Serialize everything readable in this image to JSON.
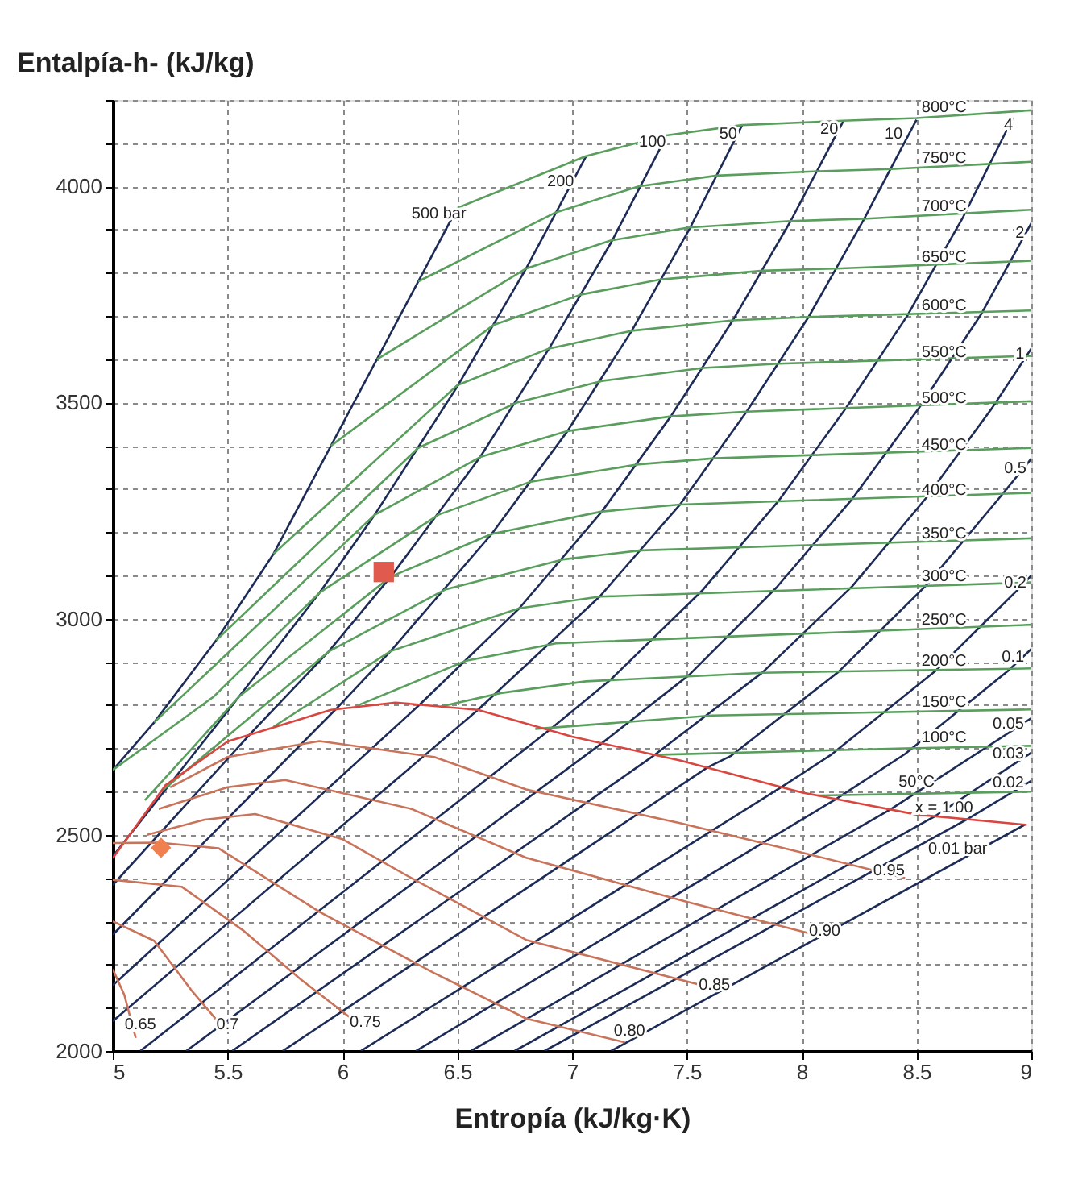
{
  "chart_data": {
    "type": "line",
    "xlabel": "Entropía (kJ/kg·K)",
    "ylabel": "Entalpía-h- (kJ/kg)",
    "xlim": [
      5,
      9
    ],
    "ylim": [
      2000,
      4200
    ],
    "xticks": [
      5,
      5.5,
      6,
      6.5,
      7,
      7.5,
      8,
      8.5,
      9
    ],
    "yticks": [
      2000,
      {
        "value": 2100,
        "label": null
      },
      {
        "value": 2200,
        "label": null
      },
      {
        "value": 2300,
        "label": null
      },
      {
        "value": 2400,
        "label": null
      },
      2500,
      {
        "value": 2600,
        "label": null
      },
      {
        "value": 2700,
        "label": null
      },
      {
        "value": 2800,
        "label": null
      },
      {
        "value": 2900,
        "label": null
      },
      3000,
      {
        "value": 3100,
        "label": null
      },
      {
        "value": 3200,
        "label": null
      },
      {
        "value": 3300,
        "label": null
      },
      {
        "value": 3400,
        "label": null
      },
      3500,
      {
        "value": 3600,
        "label": null
      },
      {
        "value": 3700,
        "label": null
      },
      {
        "value": 3800,
        "label": null
      },
      {
        "value": 3900,
        "label": null
      },
      4000,
      {
        "value": 4100,
        "label": null
      },
      {
        "value": 4200,
        "label": null
      }
    ],
    "grid": true,
    "legend": false,
    "line_style": "solid",
    "series": [
      {
        "color": "#1d2b57",
        "x": [
          5.0,
          5.18,
          5.45,
          5.7,
          5.95,
          6.15,
          6.33,
          6.5
        ],
        "values": [
          2650,
          2760,
          2950,
          3150,
          3400,
          3600,
          3780,
          3950
        ]
      },
      {
        "color": "#1d2b57",
        "x": [
          5.0,
          5.55,
          5.9,
          6.14,
          6.5,
          6.8,
          7.06
        ],
        "values": [
          2450,
          2820,
          3060,
          3240,
          3537,
          3810,
          4069
        ]
      },
      {
        "color": "#1d2b57",
        "x": [
          5.0,
          5.61,
          5.94,
          6.21,
          6.6,
          6.9,
          7.17,
          7.41
        ],
        "values": [
          2384,
          2740,
          2924,
          3097,
          3374,
          3625,
          3870,
          4115
        ]
      },
      {
        "color": "#1d2b57",
        "x": [
          5.0,
          5.97,
          6.21,
          6.65,
          6.98,
          7.26,
          7.51,
          7.74
        ],
        "values": [
          2269,
          2790,
          2925,
          3196,
          3434,
          3666,
          3900,
          4141
        ]
      },
      {
        "color": "#1d2b57",
        "x": [
          5.0,
          6.34,
          6.77,
          7.13,
          7.43,
          7.7,
          7.95,
          8.18
        ],
        "values": [
          2152,
          2803,
          3024,
          3248,
          3468,
          3690,
          3918,
          4150
        ]
      },
      {
        "color": "#1d2b57",
        "x": [
          5.0,
          6.59,
          7.12,
          7.47,
          7.76,
          8.03,
          8.27,
          8.5
        ],
        "values": [
          2069,
          2789,
          3051,
          3264,
          3479,
          3698,
          3923,
          4154
        ]
      },
      {
        "color": "#1d2b57",
        "x": [
          5.12,
          6.9,
          7.17,
          7.57,
          7.9,
          8.19,
          8.46,
          8.7,
          8.92
        ],
        "values": [
          2000,
          2742,
          2860,
          3067,
          3273,
          3485,
          3701,
          3926,
          4159
        ]
      },
      {
        "color": "#1d2b57",
        "x": [
          5.32,
          7.13,
          7.51,
          7.89,
          8.22,
          8.51,
          8.78,
          9.0
        ],
        "values": [
          2000,
          2712,
          2870,
          3072,
          3277,
          3487,
          3703,
          3915
        ]
      },
      {
        "color": "#1d2b57",
        "x": [
          5.52,
          7.36,
          7.83,
          8.22,
          8.54,
          8.83,
          9.0
        ],
        "values": [
          2000,
          2685,
          2876,
          3075,
          3278,
          3488,
          3625
        ]
      },
      {
        "color": "#1d2b57",
        "x": [
          5.74,
          7.59,
          7.69,
          8.16,
          8.54,
          8.86,
          9.0
        ],
        "values": [
          2000,
          2656,
          2682,
          2877,
          3076,
          3279,
          3370
        ]
      },
      {
        "color": "#1d2b57",
        "x": [
          6.08,
          7.91,
          8.13,
          8.58,
          8.96,
          9.0
        ],
        "values": [
          2000,
          2610,
          2686,
          2878,
          3077,
          3100
        ]
      },
      {
        "color": "#1d2b57",
        "x": [
          6.32,
          8.15,
          8.45,
          8.9,
          9.0
        ],
        "values": [
          2000,
          2583,
          2687,
          2880,
          2930
        ]
      },
      {
        "color": "#1d2b57",
        "x": [
          6.56,
          8.39,
          9.0
        ],
        "values": [
          2000,
          2560,
          2770
        ]
      },
      {
        "color": "#1d2b57",
        "x": [
          6.75,
          8.58,
          9.0
        ],
        "values": [
          2000,
          2543,
          2690
        ]
      },
      {
        "color": "#1d2b57",
        "x": [
          6.88,
          8.72,
          9.0
        ],
        "values": [
          2000,
          2536,
          2625
        ]
      },
      {
        "color": "#1d2b57",
        "x": [
          7.17,
          8.97
        ],
        "values": [
          2000,
          2523
        ]
      },
      {
        "color": "#5a9e5e",
        "x": [
          6.5,
          7.06,
          7.41,
          7.74,
          8.18,
          8.5,
          9.0
        ],
        "values": [
          3950,
          4070,
          4118,
          4142,
          4152,
          4158,
          4176
        ]
      },
      {
        "color": "#5a9e5e",
        "x": [
          6.33,
          6.93,
          7.29,
          7.63,
          8.07,
          8.39,
          9.0
        ],
        "values": [
          3780,
          3940,
          4000,
          4025,
          4035,
          4040,
          4057
        ]
      },
      {
        "color": "#5a9e5e",
        "x": [
          6.15,
          6.8,
          7.17,
          7.51,
          7.95,
          8.27,
          9.0
        ],
        "values": [
          3600,
          3810,
          3875,
          3905,
          3920,
          3925,
          3946
        ]
      },
      {
        "color": "#5a9e5e",
        "x": [
          5.95,
          6.66,
          7.04,
          7.39,
          7.83,
          8.15,
          9.0
        ],
        "values": [
          3400,
          3680,
          3750,
          3785,
          3805,
          3810,
          3828
        ]
      },
      {
        "color": "#5a9e5e",
        "x": [
          5.7,
          6.5,
          6.9,
          7.26,
          7.7,
          8.03,
          9.0
        ],
        "values": [
          3150,
          3540,
          3625,
          3666,
          3690,
          3698,
          3713
        ]
      },
      {
        "color": "#5a9e5e",
        "x": [
          5.45,
          6.33,
          6.76,
          7.13,
          7.57,
          7.9,
          9.0
        ],
        "values": [
          2950,
          3395,
          3500,
          3550,
          3580,
          3590,
          3608
        ]
      },
      {
        "color": "#5a9e5e",
        "x": [
          5.18,
          6.14,
          6.6,
          6.98,
          7.43,
          7.76,
          9.0
        ],
        "values": [
          2760,
          3240,
          3374,
          3434,
          3468,
          3479,
          3503
        ]
      },
      {
        "color": "#5a9e5e",
        "x": [
          5.0,
          5.44,
          5.9,
          6.42,
          6.82,
          7.29,
          7.62,
          9.0
        ],
        "values": [
          2650,
          2820,
          3060,
          3241,
          3317,
          3357,
          3371,
          3395
        ]
      },
      {
        "color": "#5a9e5e",
        "x": [
          5.14,
          5.55,
          6.21,
          6.65,
          7.13,
          7.47,
          9.0
        ],
        "values": [
          2580,
          2820,
          3097,
          3196,
          3248,
          3264,
          3291
        ]
      },
      {
        "color": "#5a9e5e",
        "x": [
          5.21,
          5.94,
          6.45,
          6.96,
          7.3,
          9.0
        ],
        "values": [
          2600,
          2924,
          3068,
          3137,
          3158,
          3186
        ]
      },
      {
        "color": "#5a9e5e",
        "x": [
          5.7,
          6.21,
          6.77,
          7.12,
          9.0
        ],
        "values": [
          2750,
          2925,
          3024,
          3051,
          3084
        ]
      },
      {
        "color": "#5a9e5e",
        "x": [
          6.07,
          6.54,
          6.93,
          9.0
        ],
        "values": [
          2800,
          2903,
          2943,
          2986
        ]
      },
      {
        "color": "#5a9e5e",
        "x": [
          6.43,
          6.69,
          7.06,
          7.83,
          9.0
        ],
        "values": [
          2797,
          2828,
          2855,
          2875,
          2885
        ]
      },
      {
        "color": "#5a9e5e",
        "x": [
          6.84,
          7.61,
          9.0
        ],
        "values": [
          2745,
          2776,
          2790
        ]
      },
      {
        "color": "#5a9e5e",
        "x": [
          7.35,
          8.45,
          9.0
        ],
        "values": [
          2685,
          2700,
          2706
        ]
      },
      {
        "color": "#5a9e5e",
        "x": [
          8.07,
          9.0
        ],
        "values": [
          2591,
          2600
        ]
      },
      {
        "color": "#d9463f",
        "x": [
          5.0,
          5.23,
          5.5,
          5.95,
          6.23,
          6.59,
          7.0,
          7.47,
          8.0,
          8.5,
          8.98
        ],
        "values": [
          2446,
          2615,
          2716,
          2789,
          2806,
          2789,
          2727,
          2672,
          2598,
          2547,
          2523
        ]
      },
      {
        "color": "#c8735a",
        "x": [
          5.25,
          5.5,
          5.9,
          6.4,
          6.8,
          7.47,
          8.0,
          8.45
        ],
        "values": [
          2610,
          2680,
          2717,
          2680,
          2605,
          2527,
          2459,
          2400
        ]
      },
      {
        "color": "#c8735a",
        "x": [
          5.2,
          5.5,
          5.75,
          6.3,
          6.8,
          7.5,
          8.07
        ],
        "values": [
          2560,
          2610,
          2627,
          2560,
          2447,
          2345,
          2267
        ]
      },
      {
        "color": "#c8735a",
        "x": [
          5.15,
          5.4,
          5.62,
          6.0,
          6.3,
          6.8,
          7.63
        ],
        "values": [
          2500,
          2535,
          2548,
          2490,
          2400,
          2257,
          2143
        ]
      },
      {
        "color": "#c8735a",
        "x": [
          5.0,
          5.2,
          5.46,
          5.9,
          6.4,
          6.8,
          7.23
        ],
        "values": [
          2481,
          2482,
          2469,
          2322,
          2180,
          2075,
          2020
        ]
      },
      {
        "color": "#c8735a",
        "x": [
          5.0,
          5.3,
          5.57,
          5.82,
          6.09
        ],
        "values": [
          2396,
          2380,
          2278,
          2165,
          2054
        ]
      },
      {
        "color": "#c8735a",
        "x": [
          5.0,
          5.18,
          5.34,
          5.48
        ],
        "values": [
          2300,
          2255,
          2142,
          2054
        ]
      },
      {
        "color": "#c8735a",
        "x": [
          5.0,
          5.05,
          5.1
        ],
        "values": [
          2189,
          2130,
          2030
        ]
      },
      {
        "type": "scatter",
        "marker": "square",
        "color": "#e05a4e",
        "x": [
          6.18
        ],
        "values": [
          3108
        ]
      },
      {
        "type": "scatter",
        "marker": "diamond",
        "color": "#f0804f",
        "x": [
          5.21
        ],
        "values": [
          2470
        ]
      }
    ],
    "annotations": [
      {
        "text": "500 bar",
        "x": 6.42,
        "y": 3915
      },
      {
        "text": "200",
        "x": 6.95,
        "y": 3990
      },
      {
        "text": "100",
        "x": 7.35,
        "y": 4080
      },
      {
        "text": "50",
        "x": 7.68,
        "y": 4100
      },
      {
        "text": "20",
        "x": 8.12,
        "y": 4110
      },
      {
        "text": "10",
        "x": 8.4,
        "y": 4100
      },
      {
        "text": "4",
        "x": 8.9,
        "y": 4120
      },
      {
        "text": "2",
        "x": 8.95,
        "y": 3870
      },
      {
        "text": "1",
        "x": 8.95,
        "y": 3590
      },
      {
        "text": "0.5",
        "x": 8.93,
        "y": 3325
      },
      {
        "text": "0.2",
        "x": 8.93,
        "y": 3060
      },
      {
        "text": "0.1",
        "x": 8.92,
        "y": 2890
      },
      {
        "text": "0.05",
        "x": 8.9,
        "y": 2735
      },
      {
        "text": "0.03",
        "x": 8.9,
        "y": 2665
      },
      {
        "text": "0.02",
        "x": 8.9,
        "y": 2598
      },
      {
        "text": "0.01 bar",
        "x": 8.68,
        "y": 2445
      },
      {
        "text": "800°C",
        "x": 8.62,
        "y": 4160
      },
      {
        "text": "750°C",
        "x": 8.62,
        "y": 4044
      },
      {
        "text": "700°C",
        "x": 8.62,
        "y": 3932
      },
      {
        "text": "650°C",
        "x": 8.62,
        "y": 3815
      },
      {
        "text": "600°C",
        "x": 8.62,
        "y": 3702
      },
      {
        "text": "550°C",
        "x": 8.62,
        "y": 3595
      },
      {
        "text": "500°C",
        "x": 8.62,
        "y": 3488
      },
      {
        "text": "450°C",
        "x": 8.62,
        "y": 3380
      },
      {
        "text": "400°C",
        "x": 8.62,
        "y": 3275
      },
      {
        "text": "350°C",
        "x": 8.62,
        "y": 3175
      },
      {
        "text": "300°C",
        "x": 8.62,
        "y": 3075
      },
      {
        "text": "250°C",
        "x": 8.62,
        "y": 2975
      },
      {
        "text": "200°C",
        "x": 8.62,
        "y": 2880
      },
      {
        "text": "150°C",
        "x": 8.62,
        "y": 2785
      },
      {
        "text": "100°C",
        "x": 8.62,
        "y": 2702
      },
      {
        "text": "50°C",
        "x": 8.5,
        "y": 2600
      },
      {
        "text": "x = 1.00",
        "x": 8.62,
        "y": 2540
      },
      {
        "text": "0.95",
        "x": 8.38,
        "y": 2395
      },
      {
        "text": "0.90",
        "x": 8.1,
        "y": 2255
      },
      {
        "text": "0.85",
        "x": 7.62,
        "y": 2130
      },
      {
        "text": "0.80",
        "x": 7.25,
        "y": 2025
      },
      {
        "text": "0.75",
        "x": 6.1,
        "y": 2045
      },
      {
        "text": "0.7",
        "x": 5.5,
        "y": 2040
      },
      {
        "text": "0.65",
        "x": 5.12,
        "y": 2040
      }
    ]
  }
}
